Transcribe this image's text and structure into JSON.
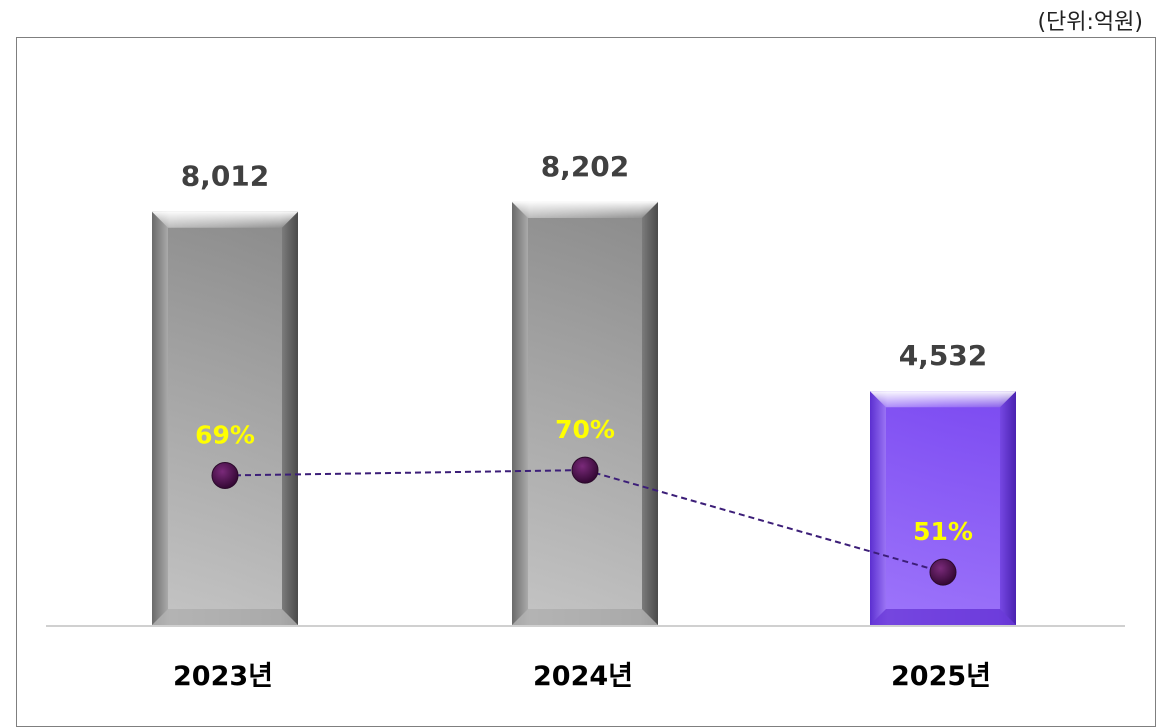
{
  "unit_label": "(단위:억원)",
  "chart_data": {
    "type": "bar",
    "categories": [
      "2023년",
      "2024년",
      "2025년"
    ],
    "series": [
      {
        "values": [
          8012,
          8202,
          4532
        ],
        "value_labels": [
          "8,012",
          "8,202",
          "4,532"
        ]
      },
      {
        "values": [
          69,
          70,
          51
        ],
        "value_labels": [
          "69%",
          "70%",
          "51%"
        ],
        "type": "line"
      }
    ],
    "ylim": [
      0,
      9500
    ],
    "line_ylim": [
      0,
      100
    ],
    "colors": {
      "bar_default": "#9a9a9a",
      "bar_highlight": "#8e5ff5",
      "line": "#3c1e78",
      "marker": "#4a0f4a",
      "percent_label": "#ffff00",
      "value_label": "#404040"
    },
    "highlight_index": 2
  }
}
